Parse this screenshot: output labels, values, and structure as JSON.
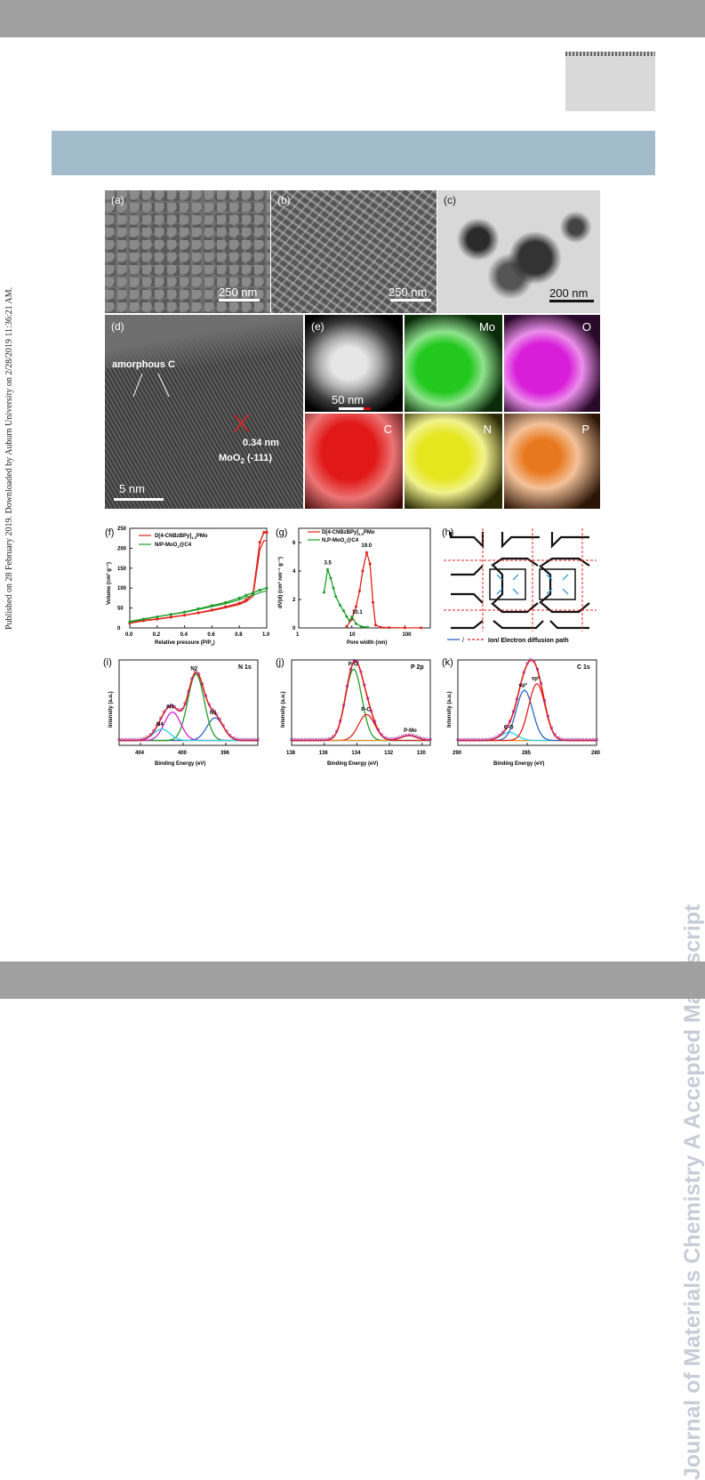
{
  "side_text": "Journal of Materials Chemistry A Accepted Manuscript",
  "published_line": "Published on 28 February 2019. Downloaded by Auburn University on 2/28/2019 11:36:21 AM.",
  "panels": {
    "a": {
      "label": "(a)",
      "scale": "250 nm"
    },
    "b": {
      "label": "(b)",
      "scale": "250 nm"
    },
    "c": {
      "label": "(c)",
      "scale": "200 nm"
    },
    "d": {
      "label": "(d)",
      "amorphous": "amorphous C",
      "spacing": "0.34 nm",
      "plane": "MoO",
      "plane_sub": "2",
      "plane_hkl": " (-111)",
      "scale": "5 nm"
    },
    "e": {
      "label": "(e)",
      "scale": "50 nm",
      "maps": [
        "Mo",
        "O",
        "C",
        "N",
        "P"
      ]
    },
    "f": {
      "label": "(f)",
      "legend1": "D[4-CNBzBPy]",
      "legend1_sub": "1.5",
      "legend1_tail": "PMo",
      "legend2": "N/P-MoO",
      "legend2_sub": "2",
      "legend2_tail": "@C4",
      "ylabel": "Volume (cm³ g⁻¹)",
      "xlabel": "Relative pressure (P/P",
      "xlabel_sub": "0",
      "xlabel_tail": ")"
    },
    "g": {
      "label": "(g)",
      "legend1": "D[4-CNBzBPy]",
      "legend1_sub": "1.5",
      "legend1_tail": "PMo",
      "legend2": "N,P-MoO",
      "legend2_sub": "2",
      "legend2_tail": "@C4",
      "ylabel": "dV(d) (cm³ nm⁻¹ g⁻¹)",
      "xlabel": "Pore width (nm)",
      "peak1": "3.5",
      "peak2": "19.0",
      "peak3": "10.1"
    },
    "h": {
      "label": "(h)",
      "caption": "Ion/ Electron diffusion path",
      "sep": "/"
    },
    "i": {
      "label": "(i)",
      "title": "N 1s",
      "peaks": [
        "N1",
        "N2",
        "N3",
        "N4"
      ],
      "ylabel": "Intensity (a.u.)",
      "xlabel": "Binding Energy (eV)"
    },
    "j": {
      "label": "(j)",
      "title": "P 2p",
      "peaks": [
        "P-O",
        "P-C",
        "P-Mo"
      ],
      "ylabel": "Intensity (a.u.)",
      "xlabel": "Binding Energy (eV)"
    },
    "k": {
      "label": "(k)",
      "title": "C 1s",
      "peaks": [
        "C-O",
        "sp³",
        "sp²"
      ],
      "ylabel": "Intensity (a.u.)",
      "xlabel": "Binding Energy (eV)"
    }
  },
  "colors": {
    "red": "#e0201b",
    "green": "#1f9e2a",
    "blue": "#2f64c8",
    "magenta": "#d020d0",
    "cyan": "#22d6e8",
    "orange": "#f08c1e",
    "mo_map": "#22c81e",
    "o_map": "#d81ed8",
    "c_map": "#e01818",
    "n_map": "#e6e61e",
    "p_map": "#e8781e"
  },
  "chart_data": [
    {
      "type": "line",
      "panel": "f",
      "xlabel": "Relative pressure (P/P0)",
      "ylabel": "Volume (cm³ g⁻¹)",
      "xlim": [
        0.0,
        1.0
      ],
      "ylim": [
        0,
        250
      ],
      "xticks": [
        "0.0",
        "0.2",
        "0.4",
        "0.6",
        "0.8",
        "1.0"
      ],
      "yticks": [
        "0",
        "50",
        "100",
        "150",
        "200",
        "250"
      ],
      "series": [
        {
          "name": "D[4-CNBzBPy]1.5PMo",
          "x": [
            0.0,
            0.1,
            0.2,
            0.3,
            0.4,
            0.5,
            0.6,
            0.7,
            0.8,
            0.85,
            0.9,
            0.95,
            0.98,
            1.0
          ],
          "y": [
            12,
            18,
            22,
            27,
            32,
            38,
            45,
            53,
            62,
            70,
            85,
            215,
            240,
            240
          ]
        },
        {
          "name": "N/P-MoO2@C4",
          "x": [
            0.0,
            0.1,
            0.2,
            0.3,
            0.4,
            0.5,
            0.6,
            0.7,
            0.8,
            0.85,
            0.9,
            0.95,
            1.0
          ],
          "y": [
            15,
            22,
            28,
            34,
            40,
            48,
            56,
            64,
            75,
            82,
            88,
            95,
            100
          ]
        }
      ]
    },
    {
      "type": "line",
      "panel": "g",
      "xlabel": "Pore width (nm)",
      "ylabel": "dV(d) (cm³ nm⁻¹ g⁻¹)",
      "xscale": "log",
      "xlim": [
        1,
        300
      ],
      "ylim": [
        0,
        7
      ],
      "xticks": [
        "1",
        "10",
        "100"
      ],
      "yticks": [
        "0",
        "2",
        "4",
        "6"
      ],
      "series": [
        {
          "name": "D[4-CNBzBPy]1.5PMo",
          "x": [
            8,
            10,
            12,
            14,
            16,
            19,
            22,
            25,
            28,
            35,
            50,
            100,
            200
          ],
          "y": [
            0.1,
            0.6,
            1.5,
            2.6,
            4.0,
            5.3,
            4.5,
            1.8,
            0.2,
            0.05,
            0.02,
            0.01,
            0.01
          ]
        },
        {
          "name": "N,P-MoO2@C4",
          "x": [
            3.0,
            3.5,
            4.0,
            4.5,
            5,
            6,
            7,
            8,
            9,
            10.1,
            12,
            15,
            20
          ],
          "y": [
            2.5,
            4.1,
            3.5,
            2.8,
            2.2,
            1.6,
            1.2,
            0.8,
            0.5,
            0.8,
            0.3,
            0.1,
            0.05
          ]
        }
      ]
    },
    {
      "type": "line",
      "panel": "i",
      "title": "N 1s",
      "xlabel": "Binding Energy (eV)",
      "ylabel": "Intensity (a.u.)",
      "xlim": [
        406,
        393
      ],
      "xticks": [
        "404",
        "400",
        "396"
      ],
      "series": [
        {
          "name": "N1",
          "center": 397.0,
          "height": 0.28
        },
        {
          "name": "N2",
          "center": 398.8,
          "height": 0.82
        },
        {
          "name": "N3",
          "center": 401.0,
          "height": 0.35
        },
        {
          "name": "N4",
          "center": 402.0,
          "height": 0.14
        }
      ]
    },
    {
      "type": "line",
      "panel": "j",
      "title": "P 2p",
      "xlabel": "Binding Energy (eV)",
      "ylabel": "Intensity (a.u.)",
      "xlim": [
        138,
        129.5
      ],
      "xticks": [
        "138",
        "136",
        "134",
        "132",
        "130"
      ],
      "series": [
        {
          "name": "P-O",
          "center": 134.2,
          "height": 0.88
        },
        {
          "name": "P-C",
          "center": 133.4,
          "height": 0.32
        },
        {
          "name": "P-Mo",
          "center": 130.8,
          "height": 0.06
        }
      ]
    },
    {
      "type": "line",
      "panel": "k",
      "title": "C 1s",
      "xlabel": "Binding Energy (eV)",
      "ylabel": "Intensity (a.u.)",
      "xlim": [
        290,
        280
      ],
      "xticks": [
        "290",
        "285",
        "280"
      ],
      "series": [
        {
          "name": "C-O",
          "center": 286.3,
          "height": 0.1
        },
        {
          "name": "sp³",
          "center": 285.2,
          "height": 0.62
        },
        {
          "name": "sp²",
          "center": 284.3,
          "height": 0.7
        }
      ]
    }
  ]
}
